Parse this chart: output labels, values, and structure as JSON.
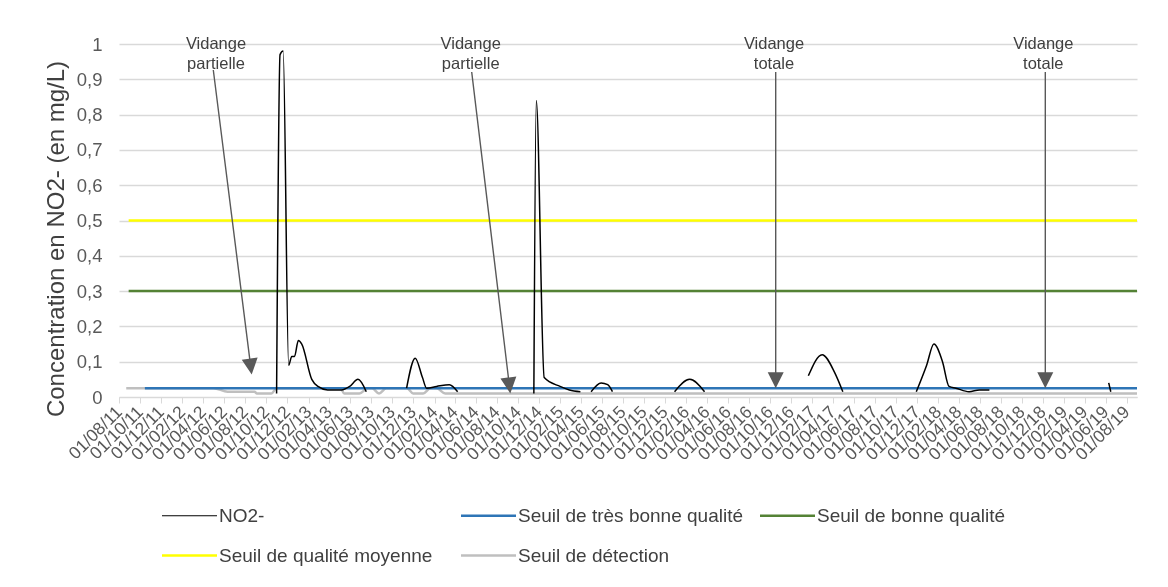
{
  "chart_data": {
    "type": "line",
    "ylabel": "Concentration en NO2- (en mg/L)",
    "xlim": [
      "2011-08-01",
      "2019-08-31"
    ],
    "xticks": [
      {
        "value": "2011-08-01",
        "label": "01/08/11"
      },
      {
        "value": "2011-10-01",
        "label": "01/10/11"
      },
      {
        "value": "2011-12-01",
        "label": "01/12/11"
      },
      {
        "value": "2012-02-01",
        "label": "01/02/12"
      },
      {
        "value": "2012-04-01",
        "label": "01/04/12"
      },
      {
        "value": "2012-06-01",
        "label": "01/06/12"
      },
      {
        "value": "2012-08-01",
        "label": "01/08/12"
      },
      {
        "value": "2012-10-01",
        "label": "01/10/12"
      },
      {
        "value": "2012-12-01",
        "label": "01/12/12"
      },
      {
        "value": "2013-02-01",
        "label": "01/02/13"
      },
      {
        "value": "2013-04-01",
        "label": "01/04/13"
      },
      {
        "value": "2013-06-01",
        "label": "01/06/13"
      },
      {
        "value": "2013-08-01",
        "label": "01/08/13"
      },
      {
        "value": "2013-10-01",
        "label": "01/10/13"
      },
      {
        "value": "2013-12-01",
        "label": "01/12/13"
      },
      {
        "value": "2014-02-01",
        "label": "01/02/14"
      },
      {
        "value": "2014-04-01",
        "label": "01/04/14"
      },
      {
        "value": "2014-06-01",
        "label": "01/06/14"
      },
      {
        "value": "2014-08-01",
        "label": "01/08/14"
      },
      {
        "value": "2014-10-01",
        "label": "01/10/14"
      },
      {
        "value": "2014-12-01",
        "label": "01/12/14"
      },
      {
        "value": "2015-02-01",
        "label": "01/02/15"
      },
      {
        "value": "2015-04-01",
        "label": "01/04/15"
      },
      {
        "value": "2015-06-01",
        "label": "01/06/15"
      },
      {
        "value": "2015-08-01",
        "label": "01/08/15"
      },
      {
        "value": "2015-10-01",
        "label": "01/10/15"
      },
      {
        "value": "2015-12-01",
        "label": "01/12/15"
      },
      {
        "value": "2016-02-01",
        "label": "01/02/16"
      },
      {
        "value": "2016-04-01",
        "label": "01/04/16"
      },
      {
        "value": "2016-06-01",
        "label": "01/06/16"
      },
      {
        "value": "2016-08-01",
        "label": "01/08/16"
      },
      {
        "value": "2016-10-01",
        "label": "01/10/16"
      },
      {
        "value": "2016-12-01",
        "label": "01/12/16"
      },
      {
        "value": "2017-02-01",
        "label": "01/02/17"
      },
      {
        "value": "2017-04-01",
        "label": "01/04/17"
      },
      {
        "value": "2017-06-01",
        "label": "01/06/17"
      },
      {
        "value": "2017-08-01",
        "label": "01/08/17"
      },
      {
        "value": "2017-10-01",
        "label": "01/10/17"
      },
      {
        "value": "2017-12-01",
        "label": "01/12/17"
      },
      {
        "value": "2018-02-01",
        "label": "01/02/18"
      },
      {
        "value": "2018-04-01",
        "label": "01/04/18"
      },
      {
        "value": "2018-06-01",
        "label": "01/06/18"
      },
      {
        "value": "2018-08-01",
        "label": "01/08/18"
      },
      {
        "value": "2018-10-01",
        "label": "01/10/18"
      },
      {
        "value": "2018-12-01",
        "label": "01/12/18"
      },
      {
        "value": "2019-02-01",
        "label": "01/02/19"
      },
      {
        "value": "2019-04-01",
        "label": "01/04/19"
      },
      {
        "value": "2019-06-01",
        "label": "01/06/19"
      },
      {
        "value": "2019-08-01",
        "label": "01/08/19"
      }
    ],
    "ylim": [
      0,
      1
    ],
    "yticks": [
      0,
      {
        "value": 0.1,
        "label": "0,1"
      },
      {
        "value": 0.2,
        "label": "0,2"
      },
      {
        "value": 0.3,
        "label": "0,3"
      },
      {
        "value": 0.4,
        "label": "0,4"
      },
      {
        "value": 0.5,
        "label": "0,5"
      },
      {
        "value": 0.6,
        "label": "0,6"
      },
      {
        "value": 0.7,
        "label": "0,7"
      },
      {
        "value": 0.8,
        "label": "0,8"
      },
      {
        "value": 0.9,
        "label": "0,9"
      },
      1
    ],
    "grid": "y",
    "legend": "bottom",
    "series": [
      {
        "name": "NO2-",
        "color": "#000000",
        "x": [
          "2012-10-31",
          "2012-11-10",
          "2012-11-19",
          "2012-12-05",
          "2012-12-14",
          "2012-12-22",
          "2013-01-02",
          "2013-01-12",
          "2013-02-10",
          "2013-02-28",
          "2013-03-28",
          "2013-05-07",
          "2013-05-31",
          "2013-06-24",
          "2013-07-18",
          "2013-09-01",
          "2013-11-12",
          "2013-12-07",
          "2013-12-28",
          "2014-01-09",
          "2014-02-07",
          "2014-03-16",
          "2014-04-09",
          "2014-06-01",
          "2014-11-16",
          "2014-11-23",
          "2014-12-16",
          "2015-01-31",
          "2015-02-27",
          "2015-03-31",
          "2015-04-15",
          "2015-05-01",
          "2015-05-30",
          "2015-06-18",
          "2015-07-02",
          "2015-09-01",
          "2015-12-29",
          "2016-02-11",
          "2016-03-25",
          "2016-06-01",
          "2017-01-20",
          "2017-03-01",
          "2017-04-06",
          "2017-04-30",
          "2017-07-01",
          "2017-11-29",
          "2017-12-29",
          "2018-01-19",
          "2018-02-13",
          "2018-03-04",
          "2018-03-24",
          "2018-05-01",
          "2018-05-31",
          "2018-06-29",
          "2018-09-01",
          "2019-06-10",
          "2019-06-16"
        ],
        "values": [
          0.01,
          0.97,
          0.98,
          0.09,
          0.115,
          0.115,
          0.16,
          0.15,
          0.05,
          0.03,
          0.02,
          0.02,
          0.03,
          0.05,
          0.015,
          null,
          0.025,
          0.11,
          0.055,
          0.025,
          0.03,
          0.035,
          0.015,
          null,
          0.01,
          0.84,
          0.055,
          0.03,
          0.02,
          0.015,
          null,
          0.015,
          0.04,
          0.035,
          0.015,
          null,
          0.015,
          0.05,
          0.015,
          null,
          0.06,
          0.12,
          0.07,
          0.015,
          null,
          0.015,
          0.09,
          0.15,
          0.1,
          0.03,
          0.025,
          0.015,
          0.02,
          0.02,
          null,
          0.04,
          0.015
        ]
      },
      {
        "name": "Seuil de très bonne qualité",
        "color": "#2e75b6",
        "x": [
          "2011-10-15",
          "2019-08-31"
        ],
        "values": [
          0.025,
          0.025
        ]
      },
      {
        "name": "Seuil de bonne qualité",
        "color": "#548235",
        "x": [
          "2011-08-29",
          "2019-08-31"
        ],
        "values": [
          0.3,
          0.3
        ]
      },
      {
        "name": "Seuil de qualité moyenne",
        "color": "#ffff00",
        "x": [
          "2011-08-29",
          "2019-08-31"
        ],
        "values": [
          0.5,
          0.5
        ]
      },
      {
        "name": "Seuil de détection",
        "color": "#bfbfbf",
        "x": [
          "2011-08-22",
          "2012-05-01",
          "2012-06-11",
          "2012-08-28",
          "2012-09-04",
          "2012-10-16",
          "2012-10-31",
          "2013-05-04",
          "2013-05-15",
          "2013-06-28",
          "2013-07-23",
          "2013-08-04",
          "2013-08-24",
          "2013-09-14",
          "2013-11-13",
          "2013-12-01",
          "2013-12-30",
          "2014-01-20",
          "2014-02-07",
          "2014-03-04",
          "2019-08-31"
        ],
        "values": [
          0.025,
          0.025,
          0.015,
          0.015,
          0.01,
          0.01,
          0.025,
          0.025,
          0.01,
          0.01,
          0.025,
          0.025,
          0.01,
          0.025,
          0.025,
          0.01,
          0.01,
          0.025,
          0.025,
          0.01,
          0.01
        ]
      }
    ],
    "annotations": [
      "Vidange partielle",
      "Vidange partielle",
      "Vidange totale",
      "Vidange totale"
    ]
  }
}
